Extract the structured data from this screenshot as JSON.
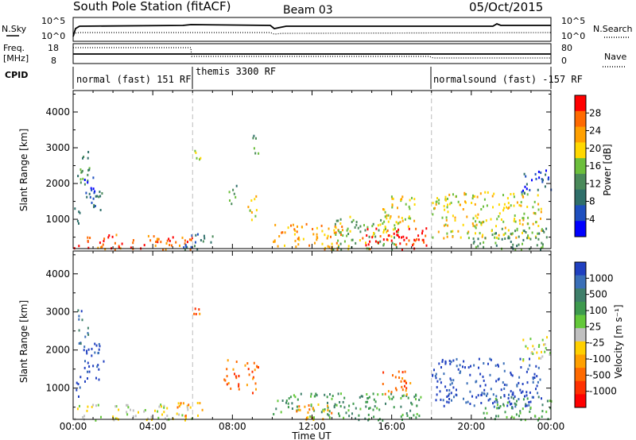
{
  "header": {
    "station": "South Pole Station (fitACF)",
    "beam": "Beam 03",
    "date": "05/Oct/2015"
  },
  "summary": {
    "nsky_label": "N.Sky",
    "nsky_ticks": [
      "10^5",
      "10^0"
    ],
    "nsearch_label": "N.Search",
    "nsearch_ticks": [
      "10^5",
      "10^0"
    ],
    "freq_label": "Freq.",
    "freq_unit": "[MHz]",
    "freq_ticks": [
      "18",
      "8"
    ],
    "nave_label": "Nave",
    "nave_ticks": [
      "80",
      "0"
    ],
    "cpid_label": "CPID",
    "cpid_segments": [
      {
        "label": "normal (fast) 151 RF",
        "start": 0,
        "end": 6
      },
      {
        "label": "themis 3300 RF",
        "start": 6,
        "end": 18
      },
      {
        "label": "normalsound (fast) -157 RF",
        "start": 18,
        "end": 24
      }
    ]
  },
  "chart_data": [
    {
      "type": "heatmap",
      "name": "Power",
      "ylabel": "Slant Range [km]",
      "yticks": [
        "1000",
        "2000",
        "3000",
        "4000"
      ],
      "ylim": [
        180,
        4600
      ],
      "xlim": [
        0,
        24
      ],
      "colorbar_label": "Power [dB]",
      "colorbar_ticks": [
        "4",
        "8",
        "12",
        "16",
        "20",
        "24",
        "28"
      ],
      "colors": [
        "#0000ff",
        "#1e4fbf",
        "#2f6f6a",
        "#4a8a5a",
        "#6cbf3c",
        "#ffd800",
        "#ffa000",
        "#ff6a00",
        "#ff0000"
      ],
      "regions": [
        {
          "t": [
            0.0,
            0.3
          ],
          "r": [
            800,
            1400
          ],
          "lvl": 2
        },
        {
          "t": [
            0.2,
            0.8
          ],
          "r": [
            1900,
            3100
          ],
          "lvl": 3
        },
        {
          "t": [
            0.5,
            1.1
          ],
          "r": [
            1200,
            2200
          ],
          "lvl": 1
        },
        {
          "t": [
            1.0,
            1.5
          ],
          "r": [
            1200,
            1900
          ],
          "lvl": 2
        },
        {
          "t": [
            0.0,
            6.0
          ],
          "r": [
            180,
            600
          ],
          "lvl": 7
        },
        {
          "t": [
            5.5,
            7.0
          ],
          "r": [
            180,
            650
          ],
          "lvl": 2
        },
        {
          "t": [
            6.0,
            6.4
          ],
          "r": [
            2700,
            3200
          ],
          "lvl": 5
        },
        {
          "t": [
            7.8,
            8.2
          ],
          "r": [
            1400,
            2100
          ],
          "lvl": 3
        },
        {
          "t": [
            8.7,
            9.2
          ],
          "r": [
            900,
            1700
          ],
          "lvl": 5
        },
        {
          "t": [
            9.0,
            9.3
          ],
          "r": [
            2700,
            3500
          ],
          "lvl": 3
        },
        {
          "t": [
            10.0,
            13.5
          ],
          "r": [
            180,
            900
          ],
          "lvl": 6
        },
        {
          "t": [
            13.0,
            16.5
          ],
          "r": [
            180,
            1100
          ],
          "lvl": 4
        },
        {
          "t": [
            14.5,
            17.8
          ],
          "r": [
            180,
            800
          ],
          "lvl": 8
        },
        {
          "t": [
            15.5,
            17.2
          ],
          "r": [
            700,
            1700
          ],
          "lvl": 5
        },
        {
          "t": [
            18.0,
            23.5
          ],
          "r": [
            500,
            1800
          ],
          "lvl": 5
        },
        {
          "t": [
            20.0,
            24.0
          ],
          "r": [
            180,
            800
          ],
          "lvl": 3
        },
        {
          "t": [
            22.5,
            24.0
          ],
          "r": [
            1700,
            2400
          ],
          "lvl": 1
        }
      ]
    },
    {
      "type": "heatmap",
      "name": "Velocity",
      "ylabel": "Slant Range [km]",
      "yticks": [
        "1000",
        "2000",
        "3000",
        "4000"
      ],
      "ylim": [
        180,
        4600
      ],
      "xlim": [
        0,
        24
      ],
      "colorbar_label": "Velocity [m s⁻¹]",
      "colorbar_ticks": [
        "1000",
        "500",
        "100",
        "25",
        "-25",
        "-100",
        "-500",
        "-1000"
      ],
      "colors": [
        "#2040c0",
        "#3a6fb8",
        "#3f7f6a",
        "#3e9a4e",
        "#64c83a",
        "#c0c0c0",
        "#ffd000",
        "#ffa000",
        "#ff6a00",
        "#ff3000",
        "#ff0000"
      ],
      "regions": [
        {
          "t": [
            0.0,
            0.4
          ],
          "r": [
            800,
            1400
          ],
          "lvl": 0
        },
        {
          "t": [
            0.2,
            0.8
          ],
          "r": [
            1900,
            3100
          ],
          "lvl": 1
        },
        {
          "t": [
            0.5,
            1.5
          ],
          "r": [
            1200,
            2200
          ],
          "lvl": 0
        },
        {
          "t": [
            0.0,
            6.0
          ],
          "r": [
            180,
            600
          ],
          "lvl": 5
        },
        {
          "t": [
            5.2,
            6.5
          ],
          "r": [
            180,
            650
          ],
          "lvl": 7
        },
        {
          "t": [
            6.0,
            6.4
          ],
          "r": [
            2700,
            3200
          ],
          "lvl": 8
        },
        {
          "t": [
            7.5,
            8.3
          ],
          "r": [
            900,
            1800
          ],
          "lvl": 8
        },
        {
          "t": [
            8.5,
            9.3
          ],
          "r": [
            900,
            1700
          ],
          "lvl": 8
        },
        {
          "t": [
            10.0,
            17.5
          ],
          "r": [
            180,
            900
          ],
          "lvl": 3
        },
        {
          "t": [
            11.0,
            13.0
          ],
          "r": [
            180,
            600
          ],
          "lvl": 7
        },
        {
          "t": [
            15.5,
            17.0
          ],
          "r": [
            800,
            1500
          ],
          "lvl": 8
        },
        {
          "t": [
            18.0,
            23.5
          ],
          "r": [
            500,
            1800
          ],
          "lvl": 0
        },
        {
          "t": [
            20.5,
            24.0
          ],
          "r": [
            180,
            800
          ],
          "lvl": 3
        },
        {
          "t": [
            22.5,
            24.0
          ],
          "r": [
            1700,
            2400
          ],
          "lvl": 5
        }
      ]
    }
  ],
  "xaxis": {
    "ticks": [
      "00:00",
      "04:00",
      "08:00",
      "12:00",
      "16:00",
      "20:00",
      "00:00"
    ],
    "label": "Time UT"
  }
}
